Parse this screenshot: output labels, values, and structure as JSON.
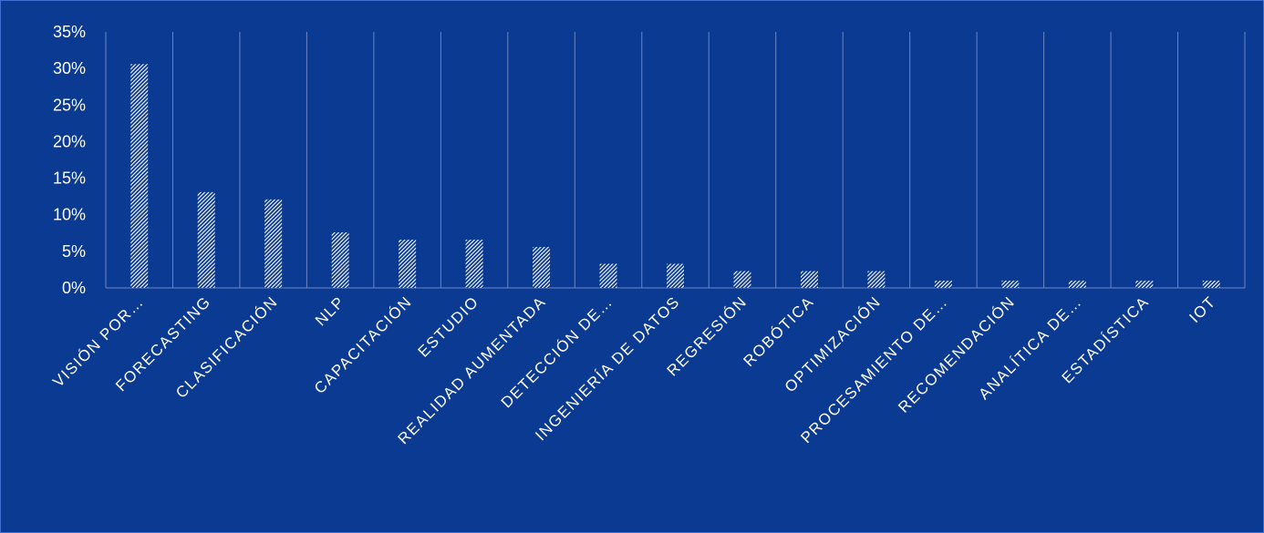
{
  "colors": {
    "background": "#0b3a92",
    "bar": "#ffffff",
    "gridline": "#6d86c4",
    "text": "#ffffff"
  },
  "chart_data": {
    "type": "bar",
    "categories": [
      "VISIÓN POR…",
      "FORECASTING",
      "CLASIFICACIÓN",
      "NLP",
      "CAPACITACIÓN",
      "ESTUDIO",
      "REALIDAD AUMENTADA",
      "DETECCIÓN DE…",
      "INGENIERÍA DE DATOS",
      "REGRESIÓN",
      "ROBÓTICA",
      "OPTIMIZACIÓN",
      "PROCESAMIENTO DE…",
      "RECOMENDACIÓN",
      "ANALÍTICA DE…",
      "ESTADÍSTICA",
      "IOT"
    ],
    "values": [
      30.6,
      13.1,
      12.1,
      7.6,
      6.6,
      6.6,
      5.6,
      3.3,
      3.3,
      2.3,
      2.3,
      2.3,
      1.0,
      1.0,
      1.0,
      1.0,
      1.0
    ],
    "yticks": [
      "0%",
      "5%",
      "10%",
      "15%",
      "20%",
      "25%",
      "30%",
      "35%"
    ],
    "ylim": [
      0,
      35
    ],
    "grid": "vertical category dividers",
    "bar_fill": "diagonal hatch"
  }
}
